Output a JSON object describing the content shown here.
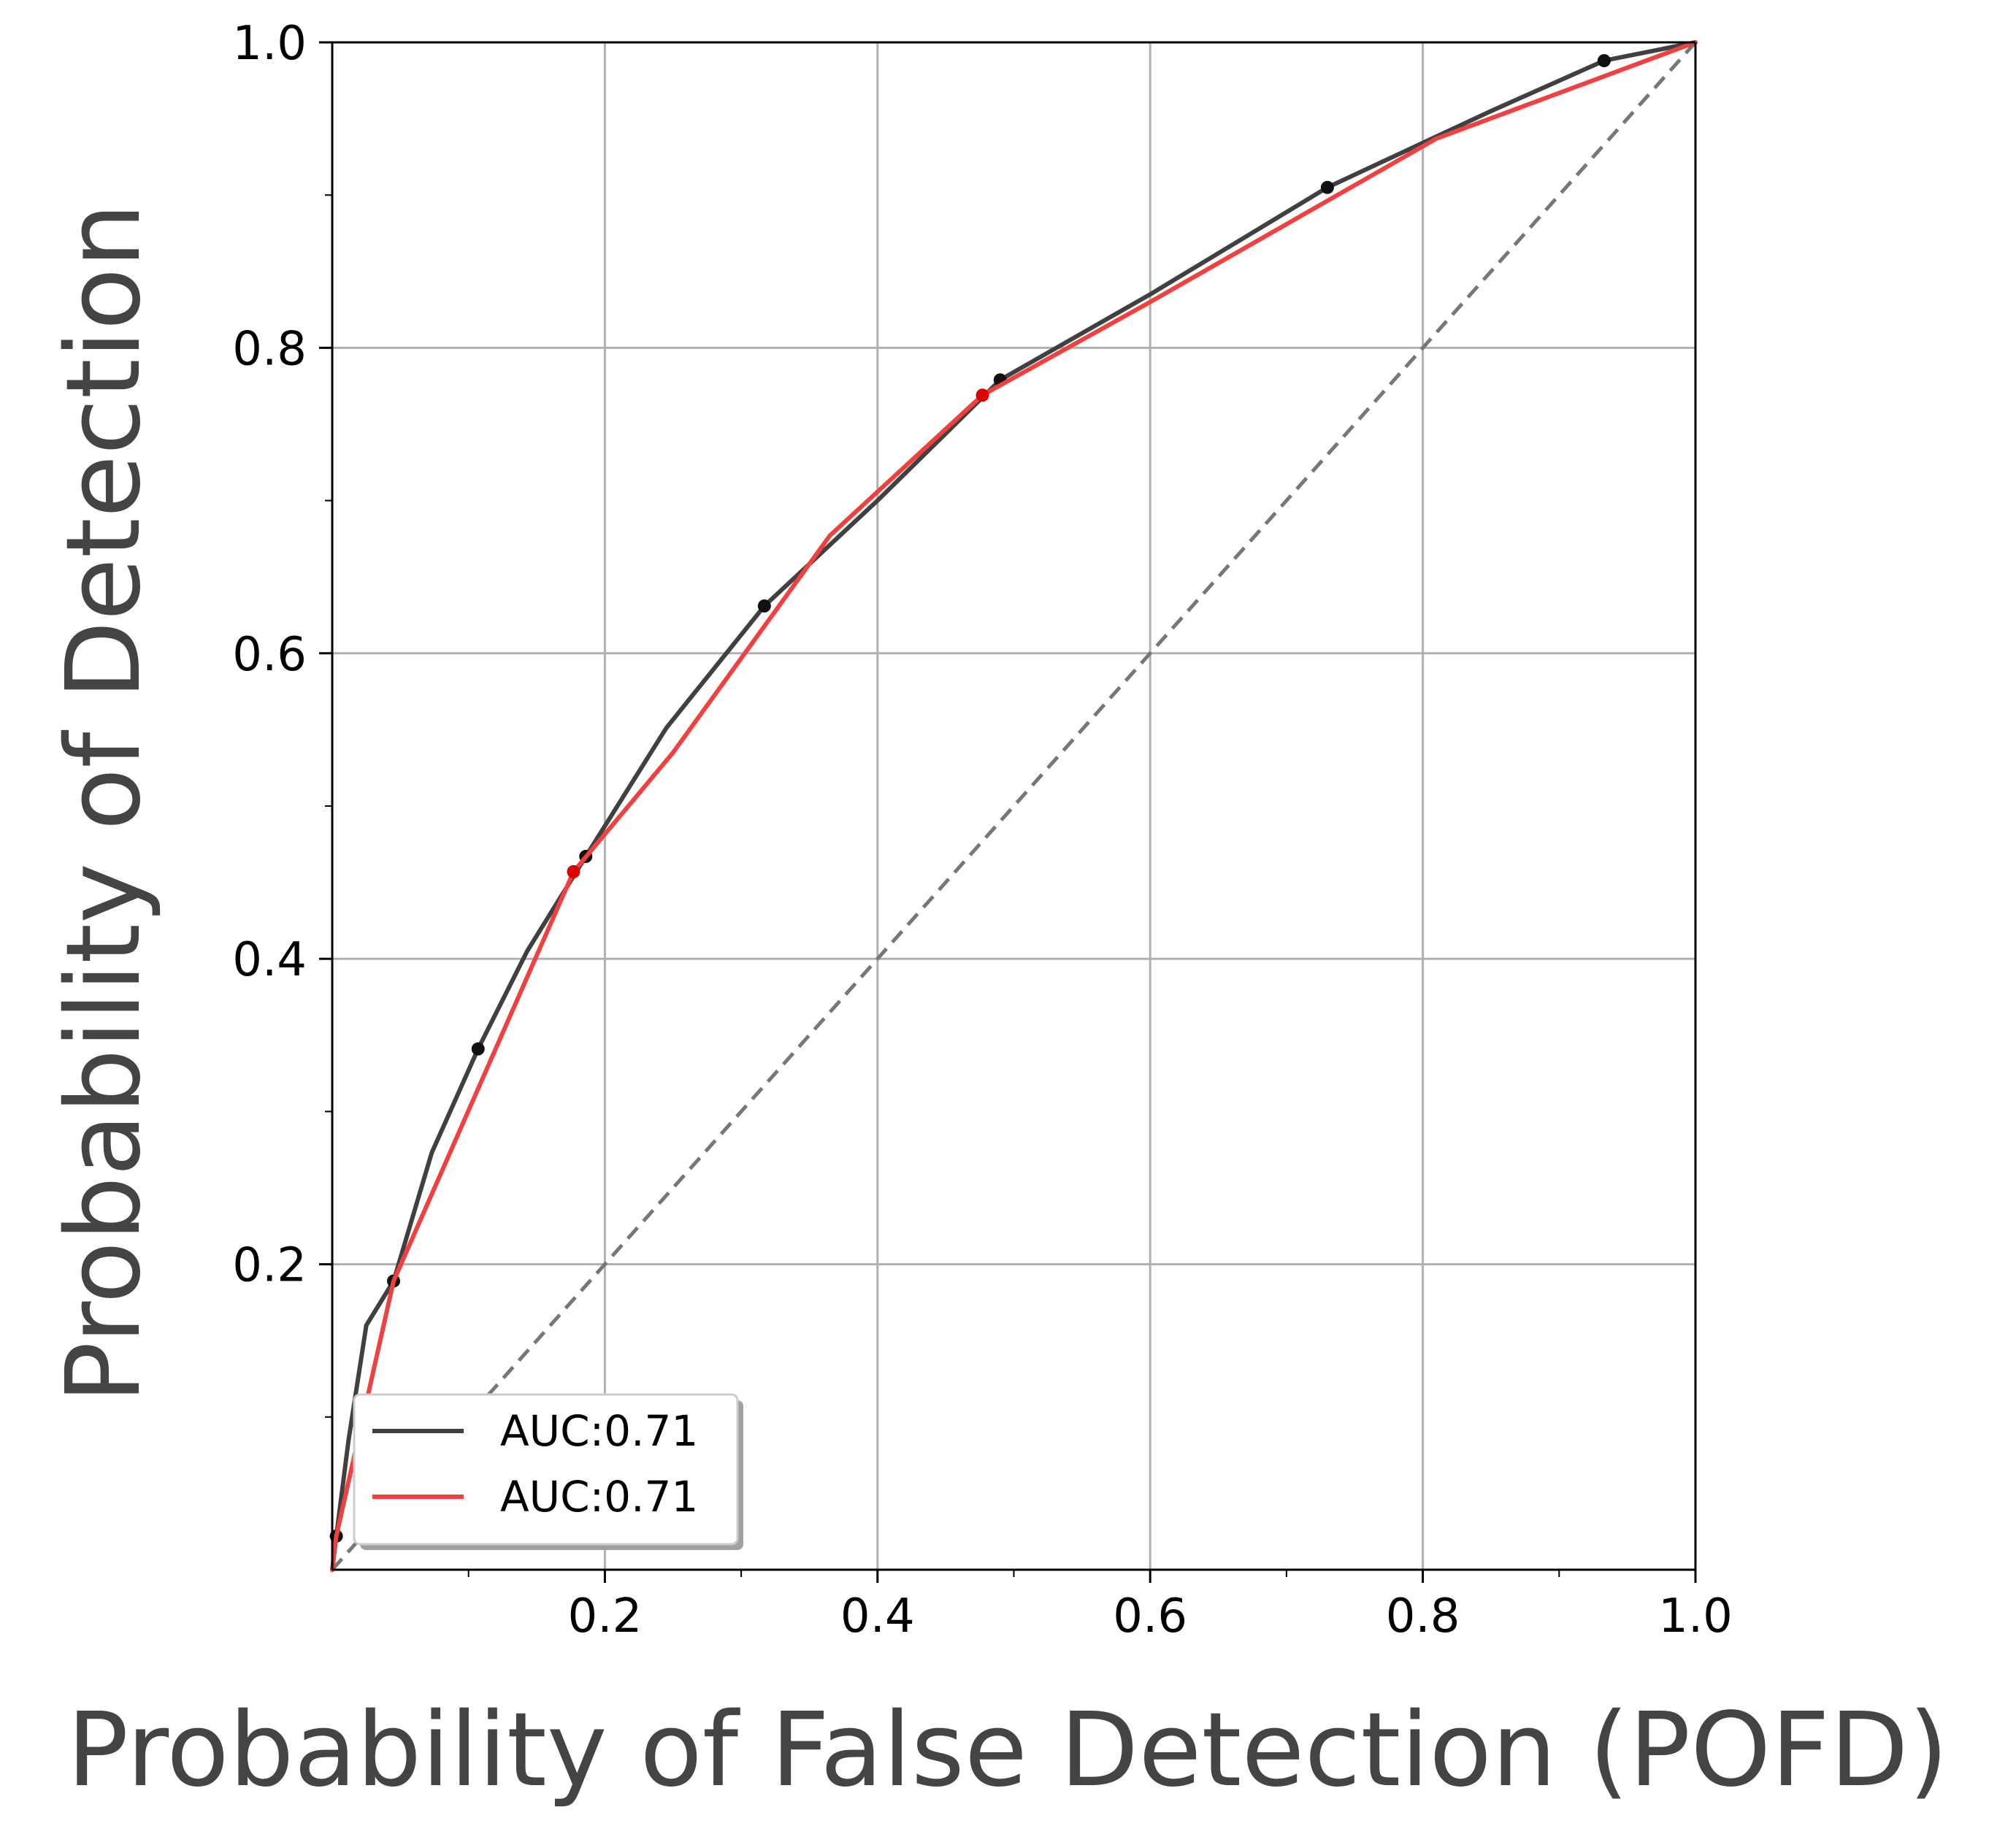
{
  "chart_data": {
    "type": "line",
    "xlabel": "Probability of False Detection (POFD)",
    "ylabel": "Probability of Detection",
    "xlim": [
      0,
      1
    ],
    "ylim": [
      0,
      1
    ],
    "x_ticks": [
      0.2,
      0.4,
      0.6,
      0.8,
      1.0
    ],
    "x_tick_labels": [
      "0.2",
      "0.4",
      "0.6",
      "0.8",
      "1.0"
    ],
    "y_ticks": [
      0.2,
      0.4,
      0.6,
      0.8,
      1.0
    ],
    "y_tick_labels": [
      "0.2",
      "0.4",
      "0.6",
      "0.8",
      "1.0"
    ],
    "x_minor_ticks": [
      0.1,
      0.3,
      0.5,
      0.7,
      0.9
    ],
    "y_minor_ticks": [
      0.1,
      0.3,
      0.5,
      0.7,
      0.9
    ],
    "grid": true,
    "legend_position": "lower-left",
    "reference_line": {
      "x": [
        0,
        1
      ],
      "y": [
        0,
        1
      ],
      "style": "dashed",
      "color": "#777777"
    },
    "series": [
      {
        "name": "AUC:0.71",
        "color": "#404040",
        "x": [
          0.0,
          0.003,
          0.012,
          0.025,
          0.045,
          0.073,
          0.107,
          0.143,
          0.186,
          0.245,
          0.317,
          0.4,
          0.49,
          0.6,
          0.73,
          0.85,
          0.933,
          1.0
        ],
        "y": [
          0.0,
          0.022,
          0.085,
          0.16,
          0.189,
          0.273,
          0.341,
          0.405,
          0.467,
          0.551,
          0.631,
          0.7,
          0.779,
          0.835,
          0.905,
          0.955,
          0.988,
          1.0
        ],
        "markers_x": [
          0.003,
          0.045,
          0.107,
          0.186,
          0.317,
          0.49,
          0.73,
          0.933
        ],
        "markers_y": [
          0.022,
          0.189,
          0.341,
          0.467,
          0.631,
          0.779,
          0.905,
          0.988
        ]
      },
      {
        "name": "AUC:0.71",
        "color": "#f04040",
        "x": [
          0.0,
          0.003,
          0.045,
          0.177,
          0.25,
          0.365,
          0.477,
          0.6,
          0.81,
          1.0
        ],
        "y": [
          0.0,
          0.022,
          0.189,
          0.457,
          0.535,
          0.677,
          0.769,
          0.83,
          0.937,
          1.0
        ],
        "markers_x": [
          0.177,
          0.477
        ],
        "markers_y": [
          0.457,
          0.769
        ]
      }
    ]
  }
}
